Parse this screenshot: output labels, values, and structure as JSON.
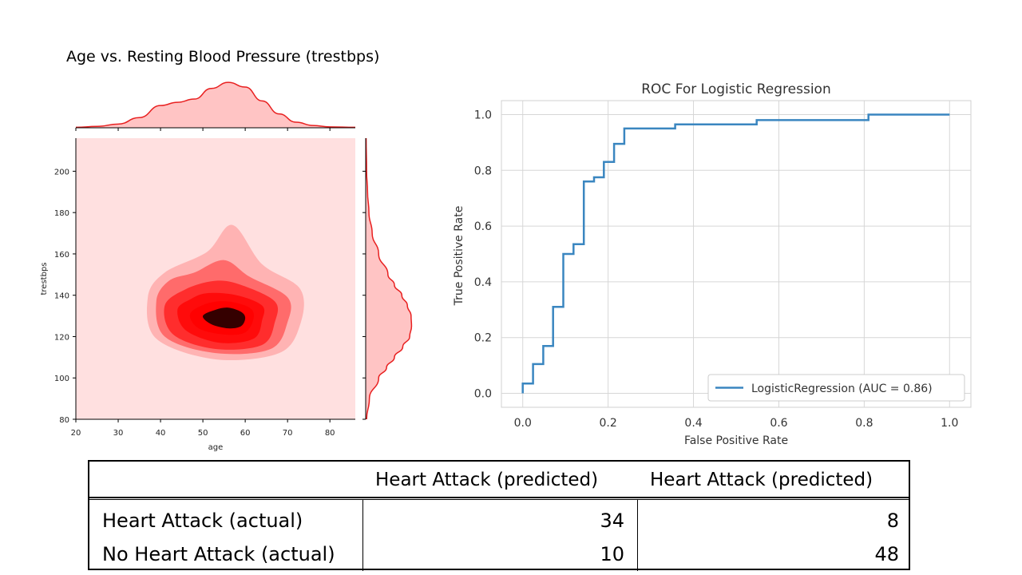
{
  "slide": {
    "title": "Age vs. Resting Blood Pressure (trestbps)"
  },
  "chart_data": [
    {
      "type": "heatmap",
      "subtype": "joint-kde",
      "title": "",
      "xlabel": "age",
      "ylabel": "trestbps",
      "xlim": [
        20,
        86
      ],
      "ylim": [
        80,
        216
      ],
      "xticks": [
        20,
        30,
        40,
        50,
        60,
        70,
        80
      ],
      "yticks": [
        80,
        100,
        120,
        140,
        160,
        180,
        200
      ],
      "colors": {
        "fill": "#ff0000",
        "background": "#ffe0e0",
        "marginal_line": "#e82020",
        "marginal_fill": "#ffc4c4",
        "core": "#2a0000"
      },
      "peak": {
        "x": 56,
        "y": 129
      },
      "marginal_x": {
        "x": [
          20,
          25,
          30,
          35,
          40,
          44,
          48,
          52,
          56,
          60,
          64,
          68,
          72,
          76,
          80,
          86
        ],
        "density": [
          0.01,
          0.03,
          0.08,
          0.22,
          0.48,
          0.55,
          0.62,
          0.85,
          0.98,
          0.88,
          0.58,
          0.3,
          0.12,
          0.05,
          0.02,
          0.01
        ]
      },
      "marginal_y": {
        "y": [
          80,
          90,
          100,
          105,
          110,
          115,
          120,
          125,
          130,
          135,
          140,
          145,
          150,
          160,
          170,
          180,
          190,
          200,
          216
        ],
        "density": [
          0.02,
          0.08,
          0.28,
          0.45,
          0.62,
          0.8,
          0.95,
          0.99,
          0.98,
          0.9,
          0.78,
          0.62,
          0.48,
          0.28,
          0.14,
          0.07,
          0.04,
          0.02,
          0.01
        ]
      }
    },
    {
      "type": "line",
      "title": "ROC For Logistic Regression",
      "xlabel": "False Positive Rate",
      "ylabel": "True Positive Rate",
      "xlim": [
        -0.05,
        1.05
      ],
      "ylim": [
        -0.05,
        1.05
      ],
      "xticks": [
        "0.0",
        "0.2",
        "0.4",
        "0.6",
        "0.8",
        "1.0"
      ],
      "yticks": [
        "0.0",
        "0.2",
        "0.4",
        "0.6",
        "0.8",
        "1.0"
      ],
      "grid": true,
      "legend_position": "lower-right",
      "series": [
        {
          "name": "LogisticRegression (AUC = 0.86)",
          "color": "#3a86c0",
          "x": [
            0.0,
            0.0,
            0.024,
            0.024,
            0.048,
            0.048,
            0.071,
            0.071,
            0.095,
            0.095,
            0.119,
            0.119,
            0.143,
            0.143,
            0.167,
            0.167,
            0.19,
            0.19,
            0.214,
            0.214,
            0.238,
            0.238,
            0.357,
            0.357,
            0.548,
            0.548,
            0.81,
            0.81,
            1.0
          ],
          "y": [
            0.0,
            0.035,
            0.035,
            0.105,
            0.105,
            0.17,
            0.17,
            0.31,
            0.31,
            0.5,
            0.5,
            0.535,
            0.535,
            0.76,
            0.76,
            0.775,
            0.775,
            0.83,
            0.83,
            0.895,
            0.895,
            0.95,
            0.95,
            0.965,
            0.965,
            0.98,
            0.98,
            1.0,
            1.0
          ]
        }
      ]
    }
  ],
  "confusion_matrix": {
    "col_headers": [
      "Heart Attack (predicted)",
      "Heart Attack (predicted)"
    ],
    "rows": [
      {
        "label": "Heart Attack (actual)",
        "values": [
          "34",
          "8"
        ]
      },
      {
        "label": "No Heart Attack (actual)",
        "values": [
          "10",
          "48"
        ]
      }
    ]
  }
}
